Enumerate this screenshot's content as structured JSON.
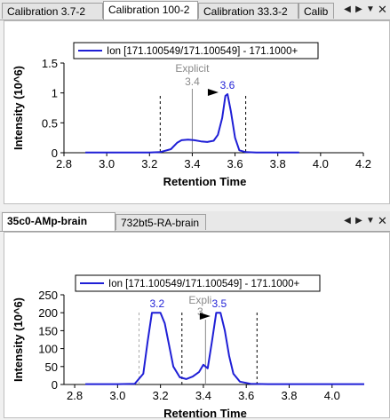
{
  "top_pane": {
    "tabs": [
      {
        "label": "Calibration 3.7-2",
        "active": false
      },
      {
        "label": "Calibration 100-2",
        "active": true
      },
      {
        "label": "Calibration 33.3-2",
        "active": false
      },
      {
        "label": "Calib",
        "active": false
      }
    ],
    "controls": [
      "left-arrow",
      "right-arrow",
      "dropdown",
      "close"
    ]
  },
  "bottom_pane": {
    "tabs": [
      {
        "label": "35c0-AMp-brain",
        "active": true
      },
      {
        "label": "732bt5-RA-brain",
        "active": false
      }
    ],
    "controls": [
      "left-arrow",
      "right-arrow",
      "dropdown",
      "close"
    ]
  },
  "colors": {
    "series": "#1f1fd6",
    "peak_label": "#1f1fd6",
    "explicit_label": "#8a8a8a",
    "boundary": "#000000"
  },
  "chart_data": [
    {
      "type": "line",
      "xlabel": "Retention Time",
      "ylabel": "Intensity (10^6)",
      "xlim": [
        2.8,
        4.2
      ],
      "ylim": [
        0,
        1.5
      ],
      "xticks": [
        "2.8",
        "3.0",
        "3.2",
        "3.4",
        "3.6",
        "3.8",
        "4.0",
        "4.2"
      ],
      "yticks": [
        "0",
        "0.5",
        "1",
        "1.5"
      ],
      "legend": "top-left",
      "series": [
        {
          "name": "Ion [171.100549/171.100549] - 171.1000+",
          "x": [
            2.9,
            3.0,
            3.1,
            3.2,
            3.25,
            3.3,
            3.33,
            3.35,
            3.38,
            3.41,
            3.44,
            3.47,
            3.5,
            3.52,
            3.54,
            3.555,
            3.565,
            3.58,
            3.6,
            3.62,
            3.65,
            3.7,
            3.8,
            3.9
          ],
          "y": [
            0.003,
            0.003,
            0.003,
            0.004,
            0.01,
            0.06,
            0.17,
            0.21,
            0.22,
            0.21,
            0.19,
            0.18,
            0.2,
            0.3,
            0.58,
            0.95,
            0.98,
            0.7,
            0.25,
            0.04,
            0.01,
            0.005,
            0.003,
            0.003
          ]
        }
      ],
      "boundaries": [
        3.25,
        3.65
      ],
      "explicit": {
        "x": 3.4,
        "label": "Explicit",
        "value": "3.4"
      },
      "peak": {
        "x": 3.56,
        "y": 0.98,
        "label": "3.6"
      }
    },
    {
      "type": "line",
      "xlabel": "Retention Time",
      "ylabel": "Intensity (10^6)",
      "xlim": [
        2.75,
        4.15
      ],
      "ylim": [
        0,
        250
      ],
      "xticks": [
        "2.8",
        "3.0",
        "3.2",
        "3.4",
        "3.6",
        "3.8",
        "4.0"
      ],
      "yticks": [
        "0",
        "50",
        "100",
        "150",
        "200",
        "250"
      ],
      "legend": "top-left",
      "series": [
        {
          "name": "Ion [171.100549/171.100549] - 171.1000+",
          "x": [
            2.85,
            3.0,
            3.08,
            3.12,
            3.14,
            3.16,
            3.2,
            3.22,
            3.24,
            3.26,
            3.29,
            3.32,
            3.35,
            3.38,
            3.4,
            3.42,
            3.44,
            3.46,
            3.48,
            3.5,
            3.52,
            3.54,
            3.57,
            3.62,
            3.7,
            4.15
          ],
          "y": [
            1,
            1,
            2,
            30,
            120,
            200,
            200,
            170,
            110,
            50,
            20,
            15,
            22,
            35,
            55,
            45,
            120,
            200,
            200,
            150,
            80,
            30,
            8,
            2,
            1,
            1
          ]
        }
      ],
      "boundaries": [
        3.1,
        3.3,
        3.65
      ],
      "explicit": {
        "x": 3.41,
        "label": "Expli",
        "value": "3"
      },
      "peaks": [
        {
          "x": 3.18,
          "y": 200,
          "label": "3.2"
        },
        {
          "x": 3.47,
          "y": 200,
          "label": "3.5"
        }
      ]
    }
  ]
}
